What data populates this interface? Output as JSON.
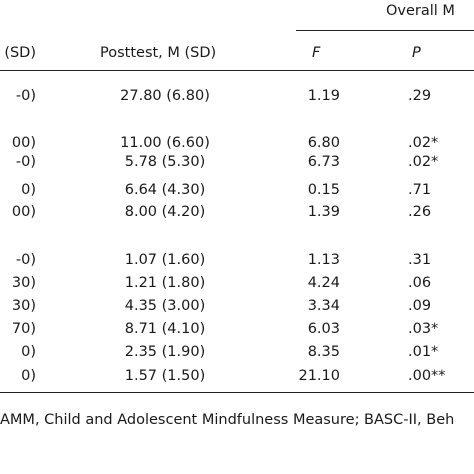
{
  "header": {
    "group": "Overall M",
    "columns": [
      "(SD)",
      "Posttest, M (SD)",
      "F",
      "P"
    ]
  },
  "table": {
    "rows": [
      [
        "-0)",
        "27.80 (6.80)",
        "1.19",
        ".29"
      ],
      [
        "00)",
        "11.00 (6.60)",
        "6.80",
        ".02*"
      ],
      [
        "-0)",
        "5.78 (5.30)",
        "6.73",
        ".02*"
      ],
      [
        "0)",
        "6.64 (4.30)",
        "0.15",
        ".71"
      ],
      [
        "00)",
        "8.00 (4.20)",
        "1.39",
        ".26"
      ],
      [
        "-0)",
        "1.07 (1.60)",
        "1.13",
        ".31"
      ],
      [
        "30)",
        "1.21 (1.80)",
        "4.24",
        ".06"
      ],
      [
        "30)",
        "4.35 (3.00)",
        "3.34",
        ".09"
      ],
      [
        "70)",
        "8.71 (4.10)",
        "6.03",
        ".03*"
      ],
      [
        "0)",
        "2.35 (1.90)",
        "8.35",
        ".01*"
      ],
      [
        "0)",
        "1.57 (1.50)",
        "21.10",
        ".00**"
      ]
    ]
  },
  "footnote": "AMM, Child and Adolescent Mindfulness Measure; BASC-II, Beh"
}
